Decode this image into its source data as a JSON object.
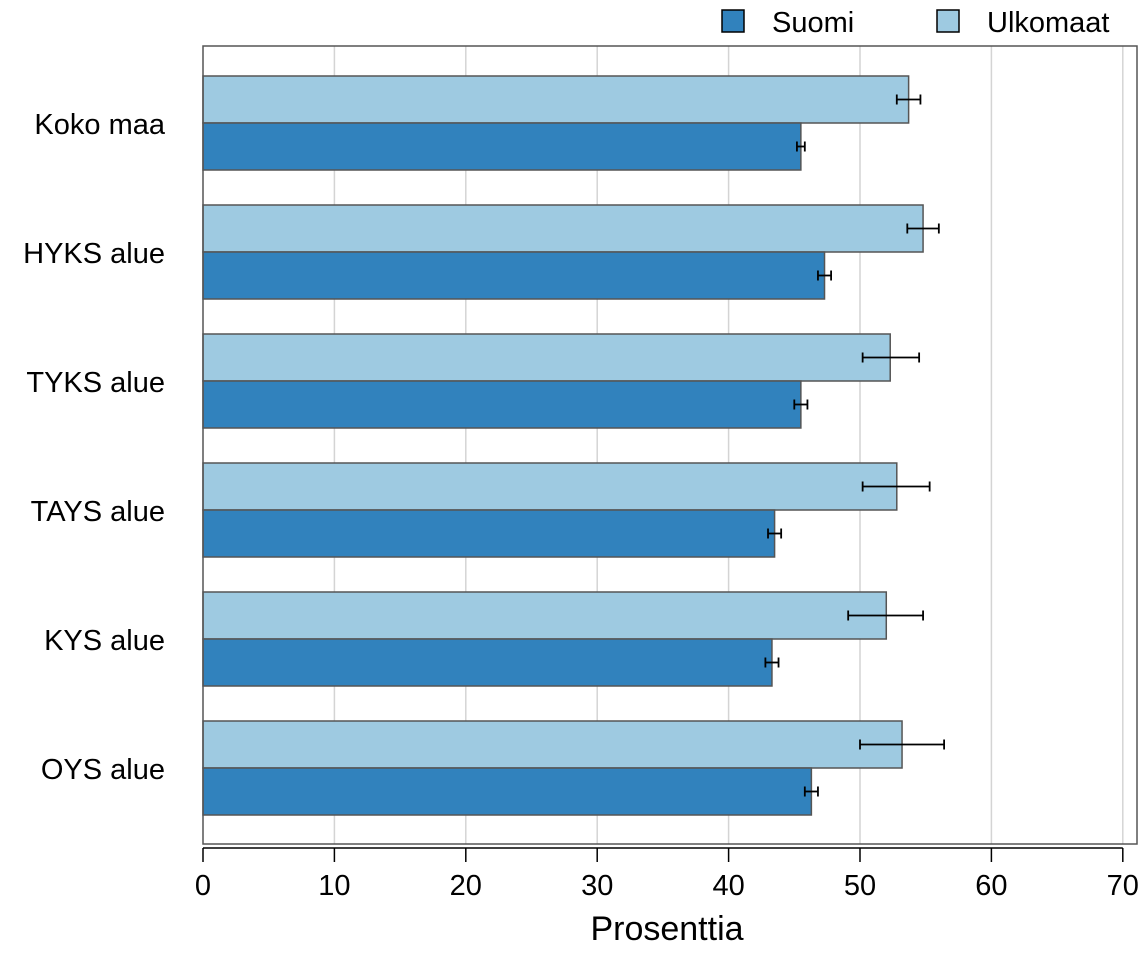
{
  "chart_data": {
    "type": "bar",
    "orientation": "horizontal",
    "categories": [
      "Koko maa",
      "HYKS alue",
      "TYKS alue",
      "TAYS alue",
      "KYS alue",
      "OYS alue"
    ],
    "series": [
      {
        "name": "Suomi",
        "color": "#3182bd",
        "values": [
          45.5,
          47.3,
          45.5,
          43.5,
          43.3,
          46.3
        ],
        "error_low": [
          45.2,
          46.8,
          45.0,
          43.0,
          42.8,
          45.8
        ],
        "error_high": [
          45.8,
          47.8,
          46.0,
          44.0,
          43.8,
          46.8
        ]
      },
      {
        "name": "Ulkomaat",
        "color": "#9ecae1",
        "values": [
          53.7,
          54.8,
          52.3,
          52.8,
          52.0,
          53.2
        ],
        "error_low": [
          52.8,
          53.6,
          50.2,
          50.2,
          49.1,
          50.0
        ],
        "error_high": [
          54.6,
          56.0,
          54.5,
          55.3,
          54.8,
          56.4
        ]
      }
    ],
    "xlabel": "Prosenttia",
    "ylabel": "",
    "xlim": [
      0,
      71
    ],
    "xticks": [
      0,
      10,
      20,
      30,
      40,
      50,
      60,
      70
    ],
    "grid": true,
    "legend": "top-right"
  }
}
